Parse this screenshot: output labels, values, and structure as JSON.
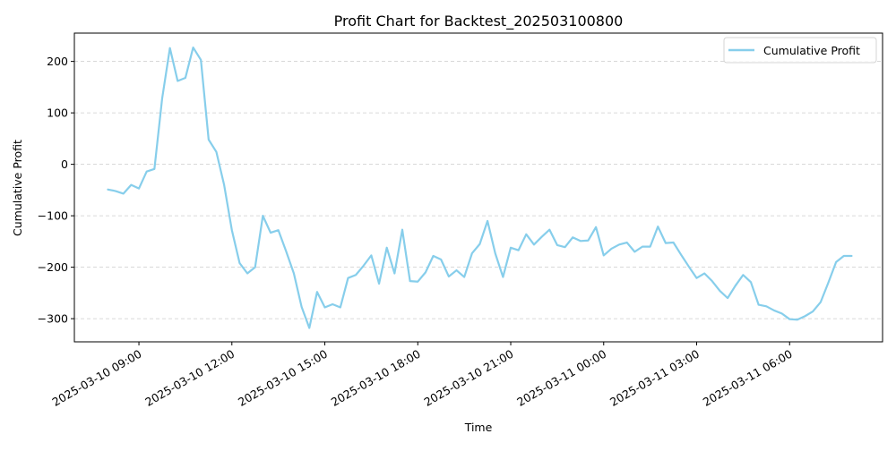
{
  "chart_data": {
    "type": "line",
    "title": "Profit Chart for Backtest_202503100800",
    "xlabel": "Time",
    "ylabel": "Cumulative Profit",
    "legend": {
      "placement": "top-right",
      "entries": [
        "Cumulative Profit"
      ]
    },
    "grid": {
      "y": true,
      "x": false,
      "style": "dashed"
    },
    "x_axis": {
      "type": "time",
      "range": [
        "2025-03-10 06:55",
        "2025-03-11 09:00"
      ],
      "ticks": [
        "2025-03-10 09:00",
        "2025-03-10 12:00",
        "2025-03-10 15:00",
        "2025-03-10 18:00",
        "2025-03-10 21:00",
        "2025-03-11 00:00",
        "2025-03-11 03:00",
        "2025-03-11 06:00"
      ]
    },
    "y_axis": {
      "ylim": [
        -345,
        255
      ],
      "ticks": [
        200,
        100,
        0,
        -100,
        -200,
        -300
      ]
    },
    "colors": {
      "line": "#87CEEB",
      "grid": "#cccccc",
      "axis": "#000000"
    },
    "series": [
      {
        "name": "Cumulative Profit",
        "x": [
          "2025-03-10 08:00",
          "2025-03-10 08:15",
          "2025-03-10 08:30",
          "2025-03-10 08:45",
          "2025-03-10 09:00",
          "2025-03-10 09:15",
          "2025-03-10 09:30",
          "2025-03-10 09:45",
          "2025-03-10 10:00",
          "2025-03-10 10:15",
          "2025-03-10 10:30",
          "2025-03-10 10:45",
          "2025-03-10 11:00",
          "2025-03-10 11:15",
          "2025-03-10 11:30",
          "2025-03-10 11:45",
          "2025-03-10 12:00",
          "2025-03-10 12:15",
          "2025-03-10 12:30",
          "2025-03-10 12:45",
          "2025-03-10 13:00",
          "2025-03-10 13:15",
          "2025-03-10 13:30",
          "2025-03-10 13:45",
          "2025-03-10 14:00",
          "2025-03-10 14:15",
          "2025-03-10 14:30",
          "2025-03-10 14:45",
          "2025-03-10 15:00",
          "2025-03-10 15:15",
          "2025-03-10 15:30",
          "2025-03-10 15:45",
          "2025-03-10 16:00",
          "2025-03-10 16:15",
          "2025-03-10 16:30",
          "2025-03-10 16:45",
          "2025-03-10 17:00",
          "2025-03-10 17:15",
          "2025-03-10 17:30",
          "2025-03-10 17:45",
          "2025-03-10 18:00",
          "2025-03-10 18:15",
          "2025-03-10 18:30",
          "2025-03-10 18:45",
          "2025-03-10 19:00",
          "2025-03-10 19:15",
          "2025-03-10 19:30",
          "2025-03-10 19:45",
          "2025-03-10 20:00",
          "2025-03-10 20:15",
          "2025-03-10 20:30",
          "2025-03-10 20:45",
          "2025-03-10 21:00",
          "2025-03-10 21:15",
          "2025-03-10 21:30",
          "2025-03-10 21:45",
          "2025-03-10 22:00",
          "2025-03-10 22:15",
          "2025-03-10 22:30",
          "2025-03-10 22:45",
          "2025-03-10 23:00",
          "2025-03-10 23:15",
          "2025-03-10 23:30",
          "2025-03-10 23:45",
          "2025-03-11 00:00",
          "2025-03-11 00:15",
          "2025-03-11 00:30",
          "2025-03-11 00:45",
          "2025-03-11 01:00",
          "2025-03-11 01:15",
          "2025-03-11 01:30",
          "2025-03-11 01:45",
          "2025-03-11 02:00",
          "2025-03-11 02:15",
          "2025-03-11 02:30",
          "2025-03-11 02:45",
          "2025-03-11 03:00",
          "2025-03-11 03:15",
          "2025-03-11 03:30",
          "2025-03-11 03:45",
          "2025-03-11 04:00",
          "2025-03-11 04:15",
          "2025-03-11 04:30",
          "2025-03-11 04:45",
          "2025-03-11 05:00",
          "2025-03-11 05:15",
          "2025-03-11 05:30",
          "2025-03-11 05:45",
          "2025-03-11 06:00",
          "2025-03-11 06:15",
          "2025-03-11 06:30",
          "2025-03-11 06:45",
          "2025-03-11 07:00",
          "2025-03-11 07:15",
          "2025-03-11 07:30",
          "2025-03-11 07:45",
          "2025-03-11 08:00"
        ],
        "values": [
          -49,
          -52,
          -57,
          -40,
          -47,
          -14,
          -9,
          128,
          226,
          162,
          168,
          227,
          203,
          48,
          24,
          -40,
          -128,
          -192,
          -212,
          -200,
          -100,
          -133,
          -128,
          -169,
          -212,
          -277,
          -318,
          -248,
          -278,
          -272,
          -278,
          -221,
          -215,
          -197,
          -177,
          -232,
          -162,
          -212,
          -127,
          -227,
          -228,
          -210,
          -178,
          -185,
          -218,
          -206,
          -219,
          -173,
          -155,
          -110,
          -173,
          -219,
          -162,
          -167,
          -136,
          -156,
          -141,
          -127,
          -157,
          -161,
          -142,
          -149,
          -148,
          -122,
          -177,
          -164,
          -156,
          -152,
          -170,
          -160,
          -160,
          -121,
          -153,
          -152,
          -176,
          -199,
          -221,
          -212,
          -227,
          -246,
          -260,
          -236,
          -215,
          -229,
          -273,
          -276,
          -284,
          -290,
          -301,
          -302,
          -295,
          -286,
          -268,
          -230,
          -190,
          -178,
          -178
        ]
      }
    ]
  }
}
